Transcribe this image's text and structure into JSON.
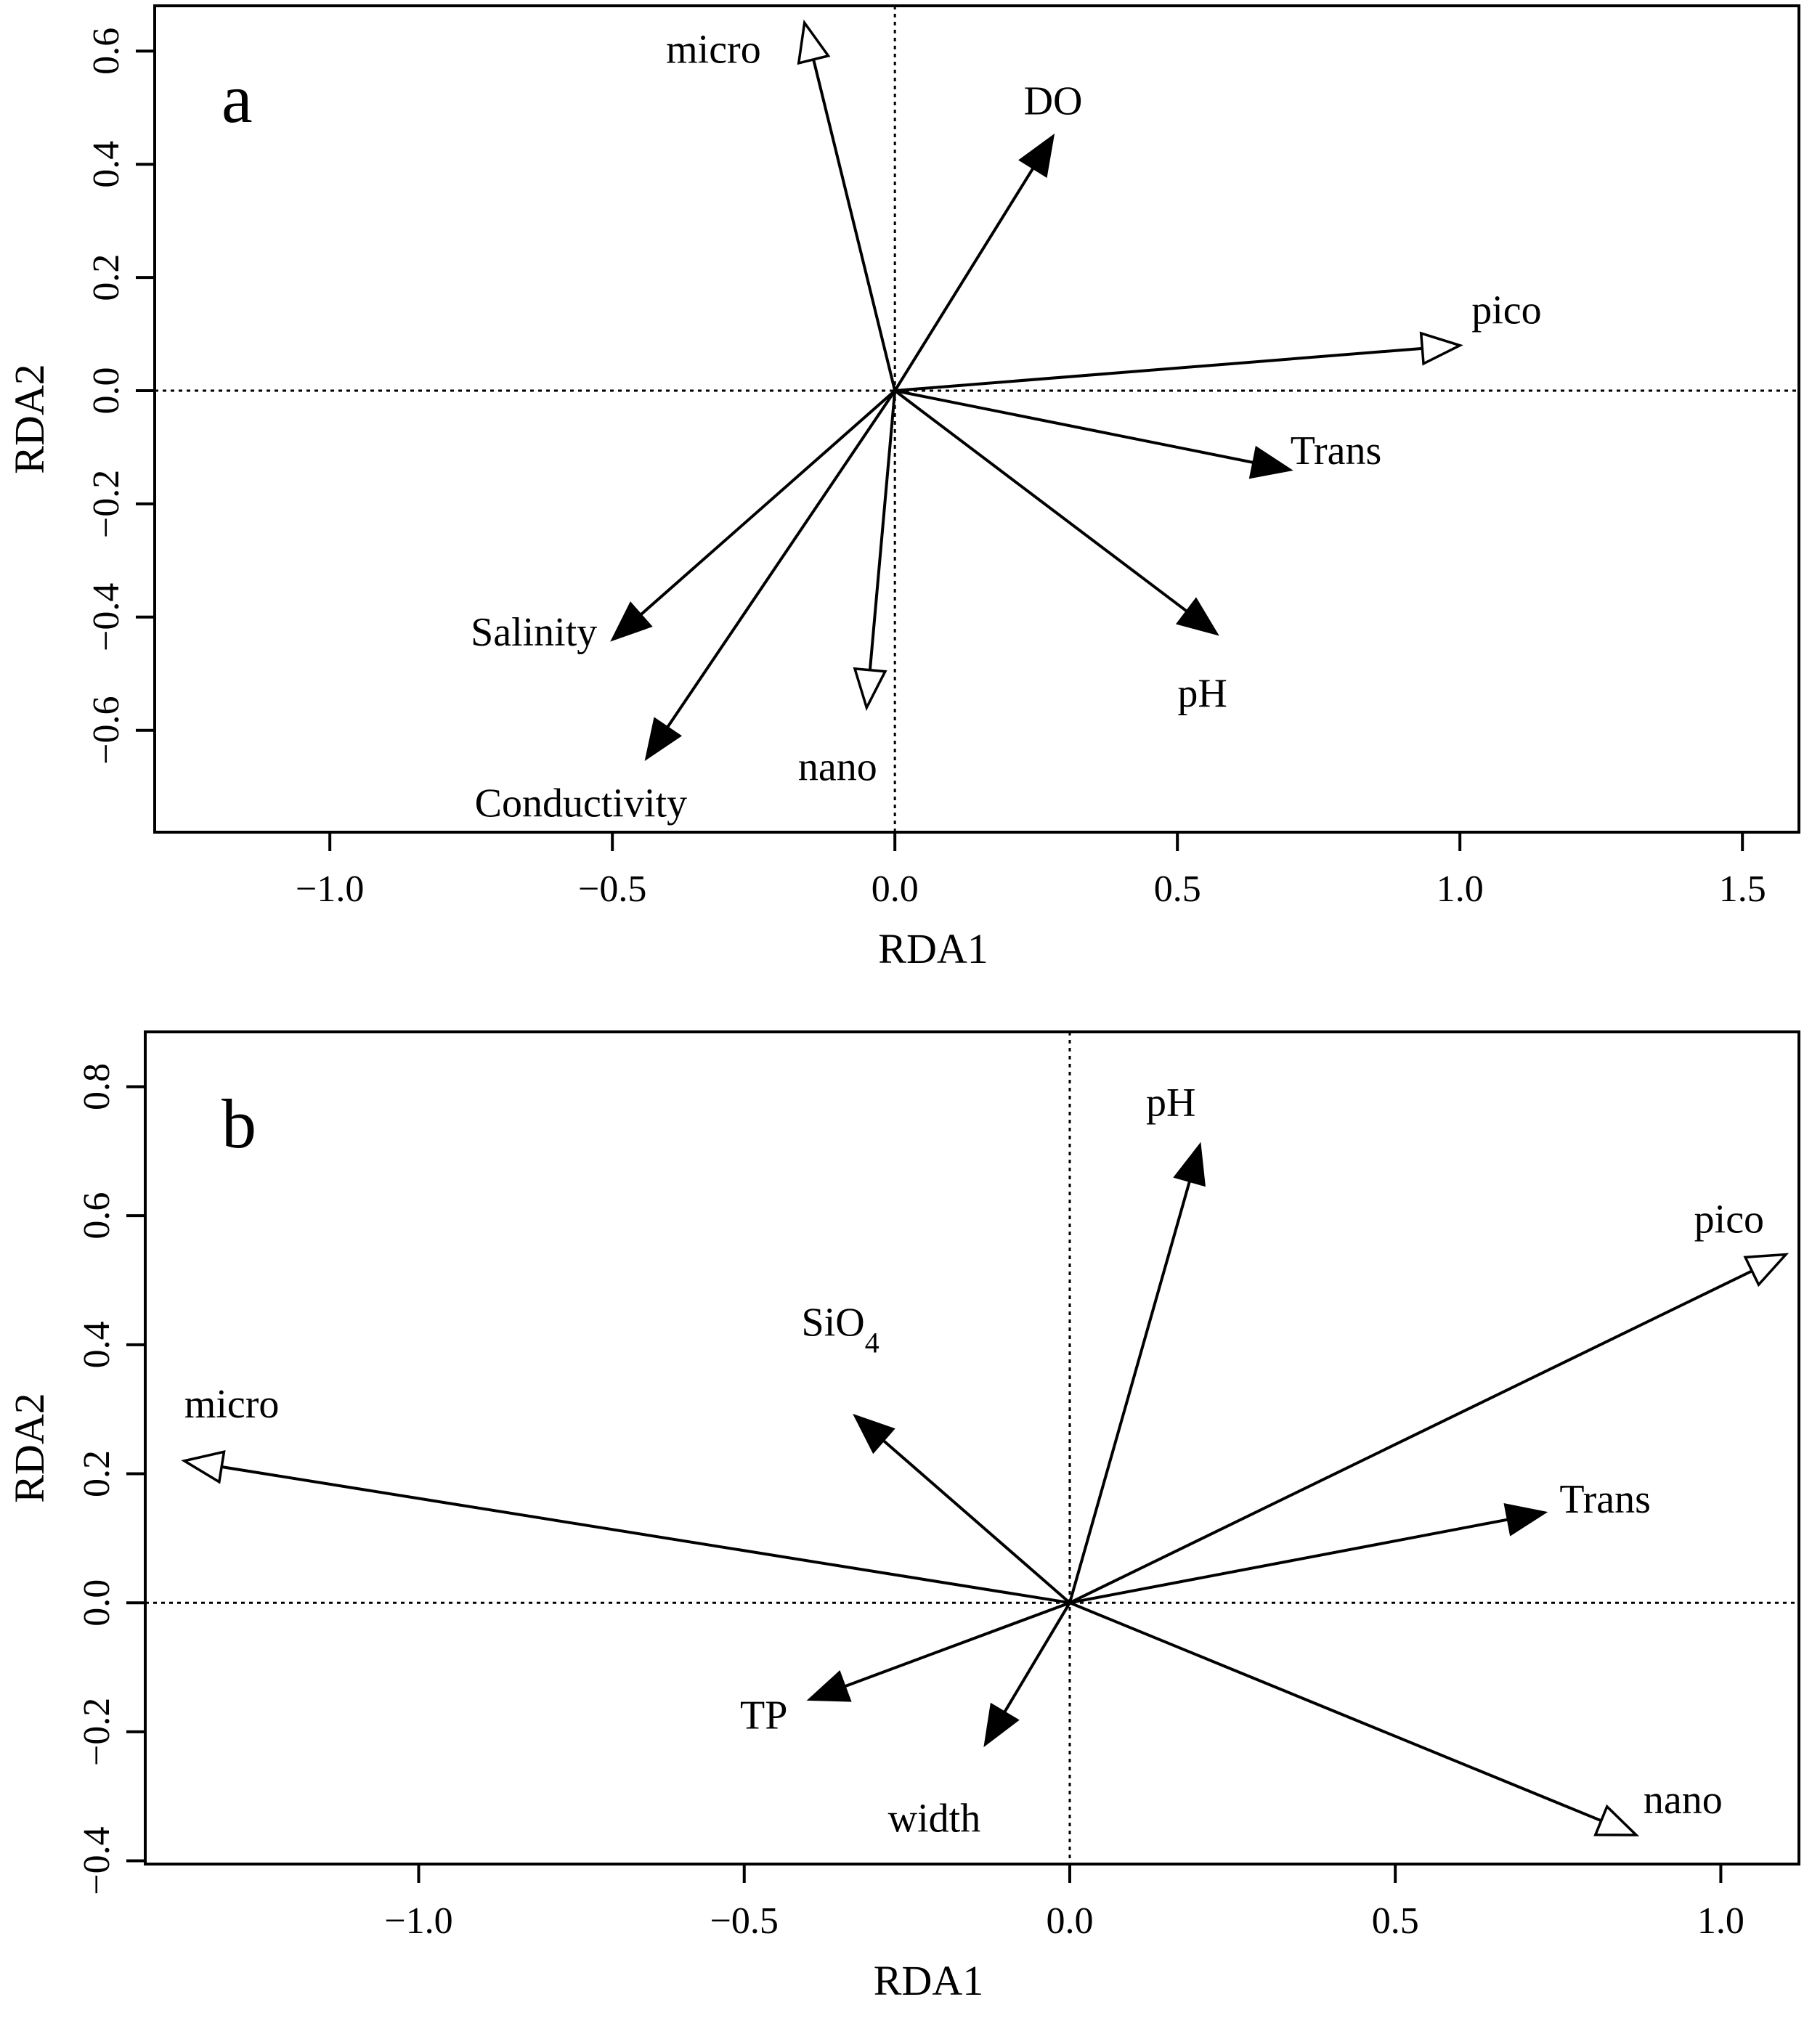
{
  "chart_data": [
    {
      "type": "biplot",
      "panel": "a",
      "xlabel": "RDA1",
      "ylabel": "RDA2",
      "xlim": [
        -1.31,
        1.6
      ],
      "ylim": [
        -0.78,
        0.68
      ],
      "xticks": [
        -1.0,
        -0.5,
        0.0,
        0.5,
        1.0,
        1.5
      ],
      "yticks": [
        -0.6,
        -0.4,
        -0.2,
        0.0,
        0.2,
        0.4,
        0.6
      ],
      "xtick_labels": [
        "−1.0",
        "−0.5",
        "0.0",
        "0.5",
        "1.0",
        "1.5"
      ],
      "ytick_labels": [
        "−0.6",
        "−0.4",
        "−0.2",
        "0.0",
        "0.2",
        "0.4",
        "0.6"
      ],
      "series": [
        {
          "name": "micro",
          "kind": "response",
          "head": "open",
          "x": -0.16,
          "y": 0.65
        },
        {
          "name": "DO",
          "kind": "environmental",
          "head": "filled",
          "x": 0.28,
          "y": 0.45
        },
        {
          "name": "pico",
          "kind": "response",
          "head": "open",
          "x": 1.0,
          "y": 0.08
        },
        {
          "name": "Trans",
          "kind": "environmental",
          "head": "filled",
          "x": 0.7,
          "y": -0.14
        },
        {
          "name": "pH",
          "kind": "environmental",
          "head": "filled",
          "x": 0.57,
          "y": -0.43
        },
        {
          "name": "nano",
          "kind": "response",
          "head": "open",
          "x": -0.05,
          "y": -0.56
        },
        {
          "name": "Salinity",
          "kind": "environmental",
          "head": "filled",
          "x": -0.5,
          "y": -0.44
        },
        {
          "name": "Conductivity",
          "kind": "environmental",
          "head": "filled",
          "x": -0.44,
          "y": -0.65
        }
      ]
    },
    {
      "type": "biplot",
      "panel": "b",
      "xlabel": "RDA1",
      "ylabel": "RDA2",
      "xlim": [
        -1.42,
        1.12
      ],
      "ylim": [
        -0.405,
        0.885
      ],
      "xticks": [
        -1.0,
        -0.5,
        0.0,
        0.5,
        1.0
      ],
      "yticks": [
        -0.4,
        -0.2,
        0.0,
        0.2,
        0.4,
        0.6,
        0.8
      ],
      "xtick_labels": [
        "−1.0",
        "−0.5",
        "0.0",
        "0.5",
        "1.0"
      ],
      "ytick_labels": [
        "−0.4",
        "−0.2",
        "0.0",
        "0.2",
        "0.4",
        "0.6",
        "0.8"
      ],
      "series": [
        {
          "name": "pH",
          "kind": "environmental",
          "head": "filled",
          "x": 0.2,
          "y": 0.71
        },
        {
          "name": "pico",
          "kind": "response",
          "head": "open",
          "x": 1.1,
          "y": 0.54
        },
        {
          "name": "SiO",
          "name_subscript": "4",
          "kind": "environmental",
          "head": "filled",
          "x": -0.33,
          "y": 0.29
        },
        {
          "name": "micro",
          "kind": "response",
          "head": "open",
          "x": -1.36,
          "y": 0.22
        },
        {
          "name": "Trans",
          "kind": "environmental",
          "head": "filled",
          "x": 0.73,
          "y": 0.14
        },
        {
          "name": "TP",
          "kind": "environmental",
          "head": "filled",
          "x": -0.4,
          "y": -0.15
        },
        {
          "name": "width",
          "kind": "environmental",
          "head": "filled",
          "x": -0.13,
          "y": -0.22
        },
        {
          "name": "nano",
          "kind": "response",
          "head": "open",
          "x": 0.87,
          "y": -0.36
        }
      ]
    }
  ]
}
